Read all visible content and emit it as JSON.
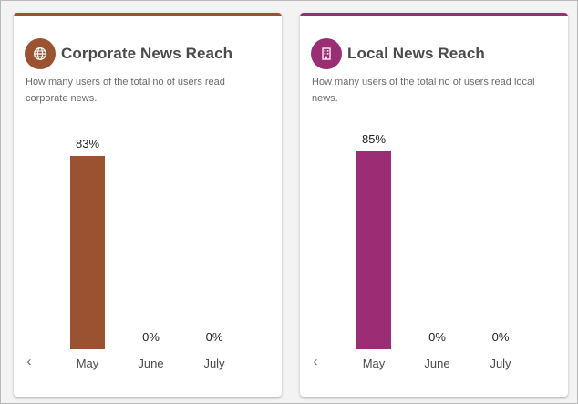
{
  "cards": [
    {
      "title": "Corporate News Reach",
      "description": "How many users of the total no of users read corporate news.",
      "icon": "globe-icon",
      "accent": "#9a5230",
      "chart_data": {
        "type": "bar",
        "categories": [
          "May",
          "June",
          "July"
        ],
        "values": [
          83,
          0,
          0
        ],
        "value_labels": [
          "83%",
          "0%",
          "0%"
        ],
        "ylim": [
          0,
          100
        ]
      }
    },
    {
      "title": "Local News Reach",
      "description": "How many users of the total no of users read local news.",
      "icon": "building-icon",
      "accent": "#9b2d75",
      "chart_data": {
        "type": "bar",
        "categories": [
          "May",
          "June",
          "July"
        ],
        "values": [
          85,
          0,
          0
        ],
        "value_labels": [
          "85%",
          "0%",
          "0%"
        ],
        "ylim": [
          0,
          100
        ]
      }
    }
  ],
  "nav": {
    "prev_label": "‹"
  }
}
